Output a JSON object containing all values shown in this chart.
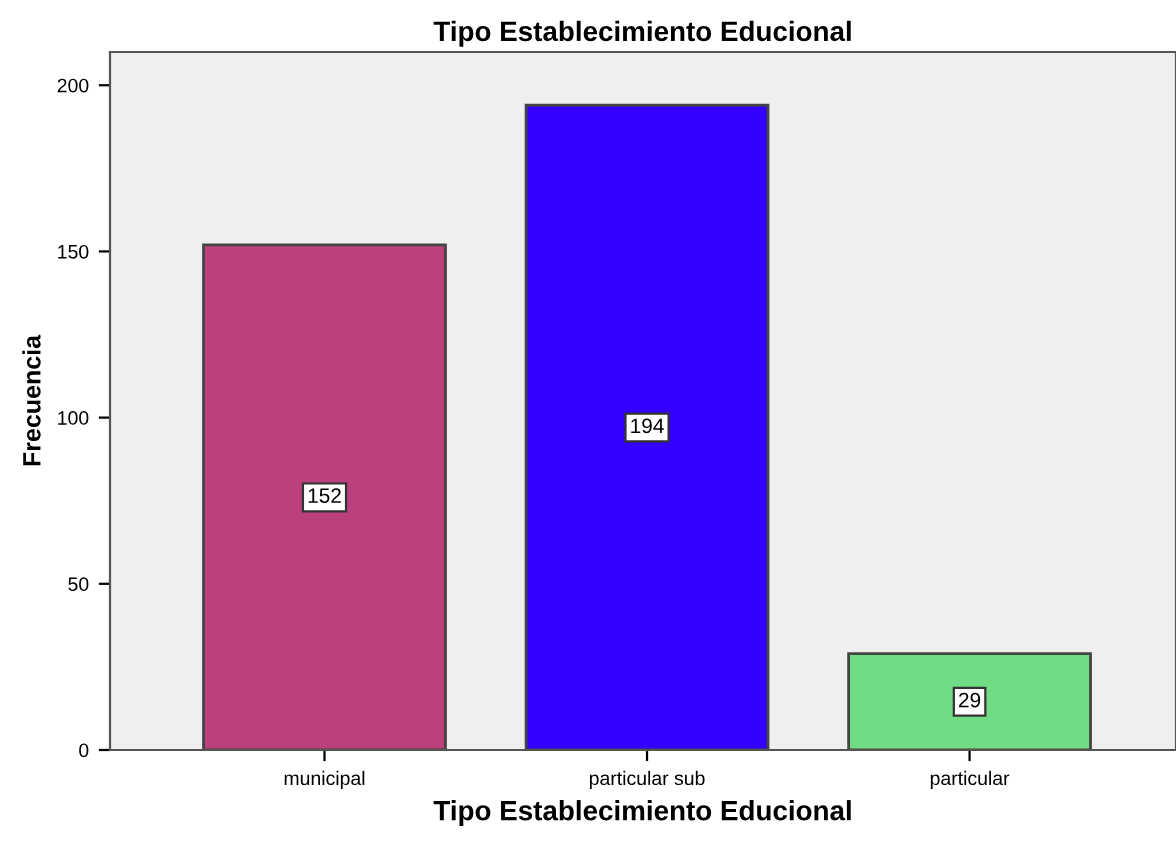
{
  "chart_data": {
    "type": "bar",
    "title": "Tipo Establecimiento Educional",
    "xlabel": "Tipo Establecimiento Educional",
    "ylabel": "Frecuencia",
    "categories": [
      "municipal",
      "particular sub",
      "particular"
    ],
    "values": [
      152,
      194,
      29
    ],
    "colors": [
      "#bb407c",
      "#3300ff",
      "#70dc84"
    ],
    "ylim": [
      0,
      210
    ],
    "yticks": [
      0,
      50,
      100,
      150,
      200
    ],
    "grid": false,
    "data_labels": true
  }
}
